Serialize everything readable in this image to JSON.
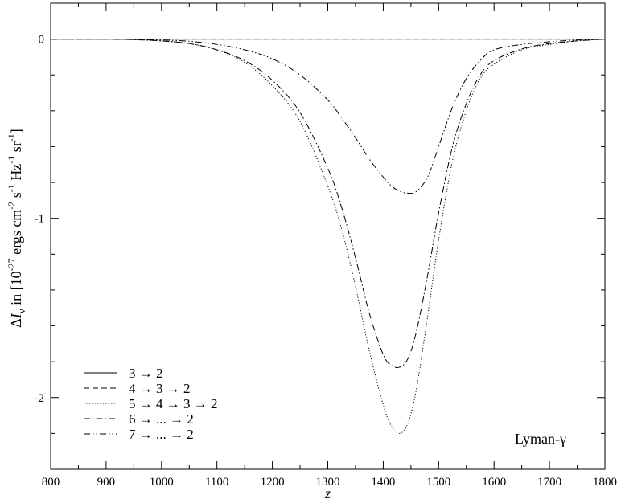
{
  "chart_data": {
    "type": "line",
    "xlabel": "z",
    "ylabel": "ΔI_ν in [10^-27 ergs cm^-2 s^-1 Hz^-1 sr^-1]",
    "ylabel_parts": {
      "delta": "Δ",
      "I": "I",
      "nu": "ν",
      "in": " in [10",
      "exp27": "-27",
      "ergs_cm": " ergs cm",
      "exp2": "-2",
      "s": " s",
      "exp1a": "-1",
      "hz": " Hz",
      "exp1b": "-1",
      "sr": " sr",
      "exp1c": "-1",
      "close": "]"
    },
    "xlim": [
      800,
      1800
    ],
    "ylim": [
      -2.4,
      0.2
    ],
    "xticks": [
      800,
      900,
      1000,
      1100,
      1200,
      1300,
      1400,
      1500,
      1600,
      1700,
      1800
    ],
    "xtick_labels": [
      "800",
      "900",
      "1000",
      "1100",
      "1200",
      "1300",
      "1400",
      "1500",
      "1600",
      "1700",
      "1800"
    ],
    "yticks": [
      0,
      -1,
      -2
    ],
    "ytick_labels": [
      "0",
      "-1",
      "-2"
    ],
    "annotation": "Lyman-γ",
    "legend_position": "bottom-left",
    "series": [
      {
        "name": "3 → 2",
        "dash": "solid",
        "x": [
          800,
          900,
          1000,
          1100,
          1200,
          1300,
          1400,
          1500,
          1600,
          1700,
          1800
        ],
        "y": [
          0,
          0,
          0,
          0,
          0,
          0,
          0,
          0,
          0,
          0,
          0
        ]
      },
      {
        "name": "4 → 3 → 2",
        "dash": "dashed",
        "x": [
          800,
          900,
          1000,
          1100,
          1200,
          1300,
          1400,
          1500,
          1600,
          1700,
          1800
        ],
        "y": [
          0,
          0,
          0,
          0,
          0,
          0,
          0,
          0,
          0,
          0,
          0
        ]
      },
      {
        "name": "5 → 4 → 3 → 2",
        "dash": "dotted",
        "x": [
          800,
          900,
          950,
          1000,
          1050,
          1100,
          1150,
          1200,
          1250,
          1300,
          1325,
          1350,
          1375,
          1400,
          1415,
          1430,
          1445,
          1460,
          1480,
          1500,
          1525,
          1550,
          1575,
          1600,
          1650,
          1700,
          1750,
          1800
        ],
        "y": [
          0,
          0,
          -0.003,
          -0.01,
          -0.025,
          -0.06,
          -0.13,
          -0.26,
          -0.46,
          -0.82,
          -1.06,
          -1.38,
          -1.74,
          -2.04,
          -2.16,
          -2.2,
          -2.14,
          -1.95,
          -1.55,
          -1.12,
          -0.68,
          -0.4,
          -0.22,
          -0.14,
          -0.06,
          -0.03,
          -0.01,
          0
        ]
      },
      {
        "name": "6 → ... → 2",
        "dash": "dashdot",
        "x": [
          800,
          900,
          950,
          1000,
          1050,
          1100,
          1150,
          1200,
          1250,
          1300,
          1325,
          1350,
          1375,
          1400,
          1415,
          1430,
          1445,
          1460,
          1480,
          1500,
          1525,
          1550,
          1575,
          1600,
          1650,
          1700,
          1750,
          1800
        ],
        "y": [
          0,
          0,
          -0.003,
          -0.01,
          -0.025,
          -0.06,
          -0.12,
          -0.23,
          -0.41,
          -0.72,
          -0.94,
          -1.22,
          -1.53,
          -1.76,
          -1.82,
          -1.83,
          -1.78,
          -1.63,
          -1.32,
          -0.97,
          -0.6,
          -0.36,
          -0.2,
          -0.12,
          -0.055,
          -0.025,
          -0.01,
          0
        ]
      },
      {
        "name": "7 → ... → 2",
        "dash": "dashdotdot",
        "x": [
          800,
          900,
          950,
          1000,
          1050,
          1100,
          1150,
          1200,
          1250,
          1300,
          1325,
          1350,
          1375,
          1400,
          1415,
          1430,
          1445,
          1460,
          1480,
          1500,
          1525,
          1550,
          1575,
          1600,
          1650,
          1700,
          1750,
          1800
        ],
        "y": [
          0,
          0,
          -0.002,
          -0.005,
          -0.012,
          -0.03,
          -0.06,
          -0.11,
          -0.2,
          -0.34,
          -0.44,
          -0.55,
          -0.67,
          -0.77,
          -0.82,
          -0.85,
          -0.86,
          -0.85,
          -0.77,
          -0.6,
          -0.38,
          -0.22,
          -0.12,
          -0.06,
          -0.03,
          -0.015,
          -0.005,
          0
        ]
      }
    ]
  }
}
